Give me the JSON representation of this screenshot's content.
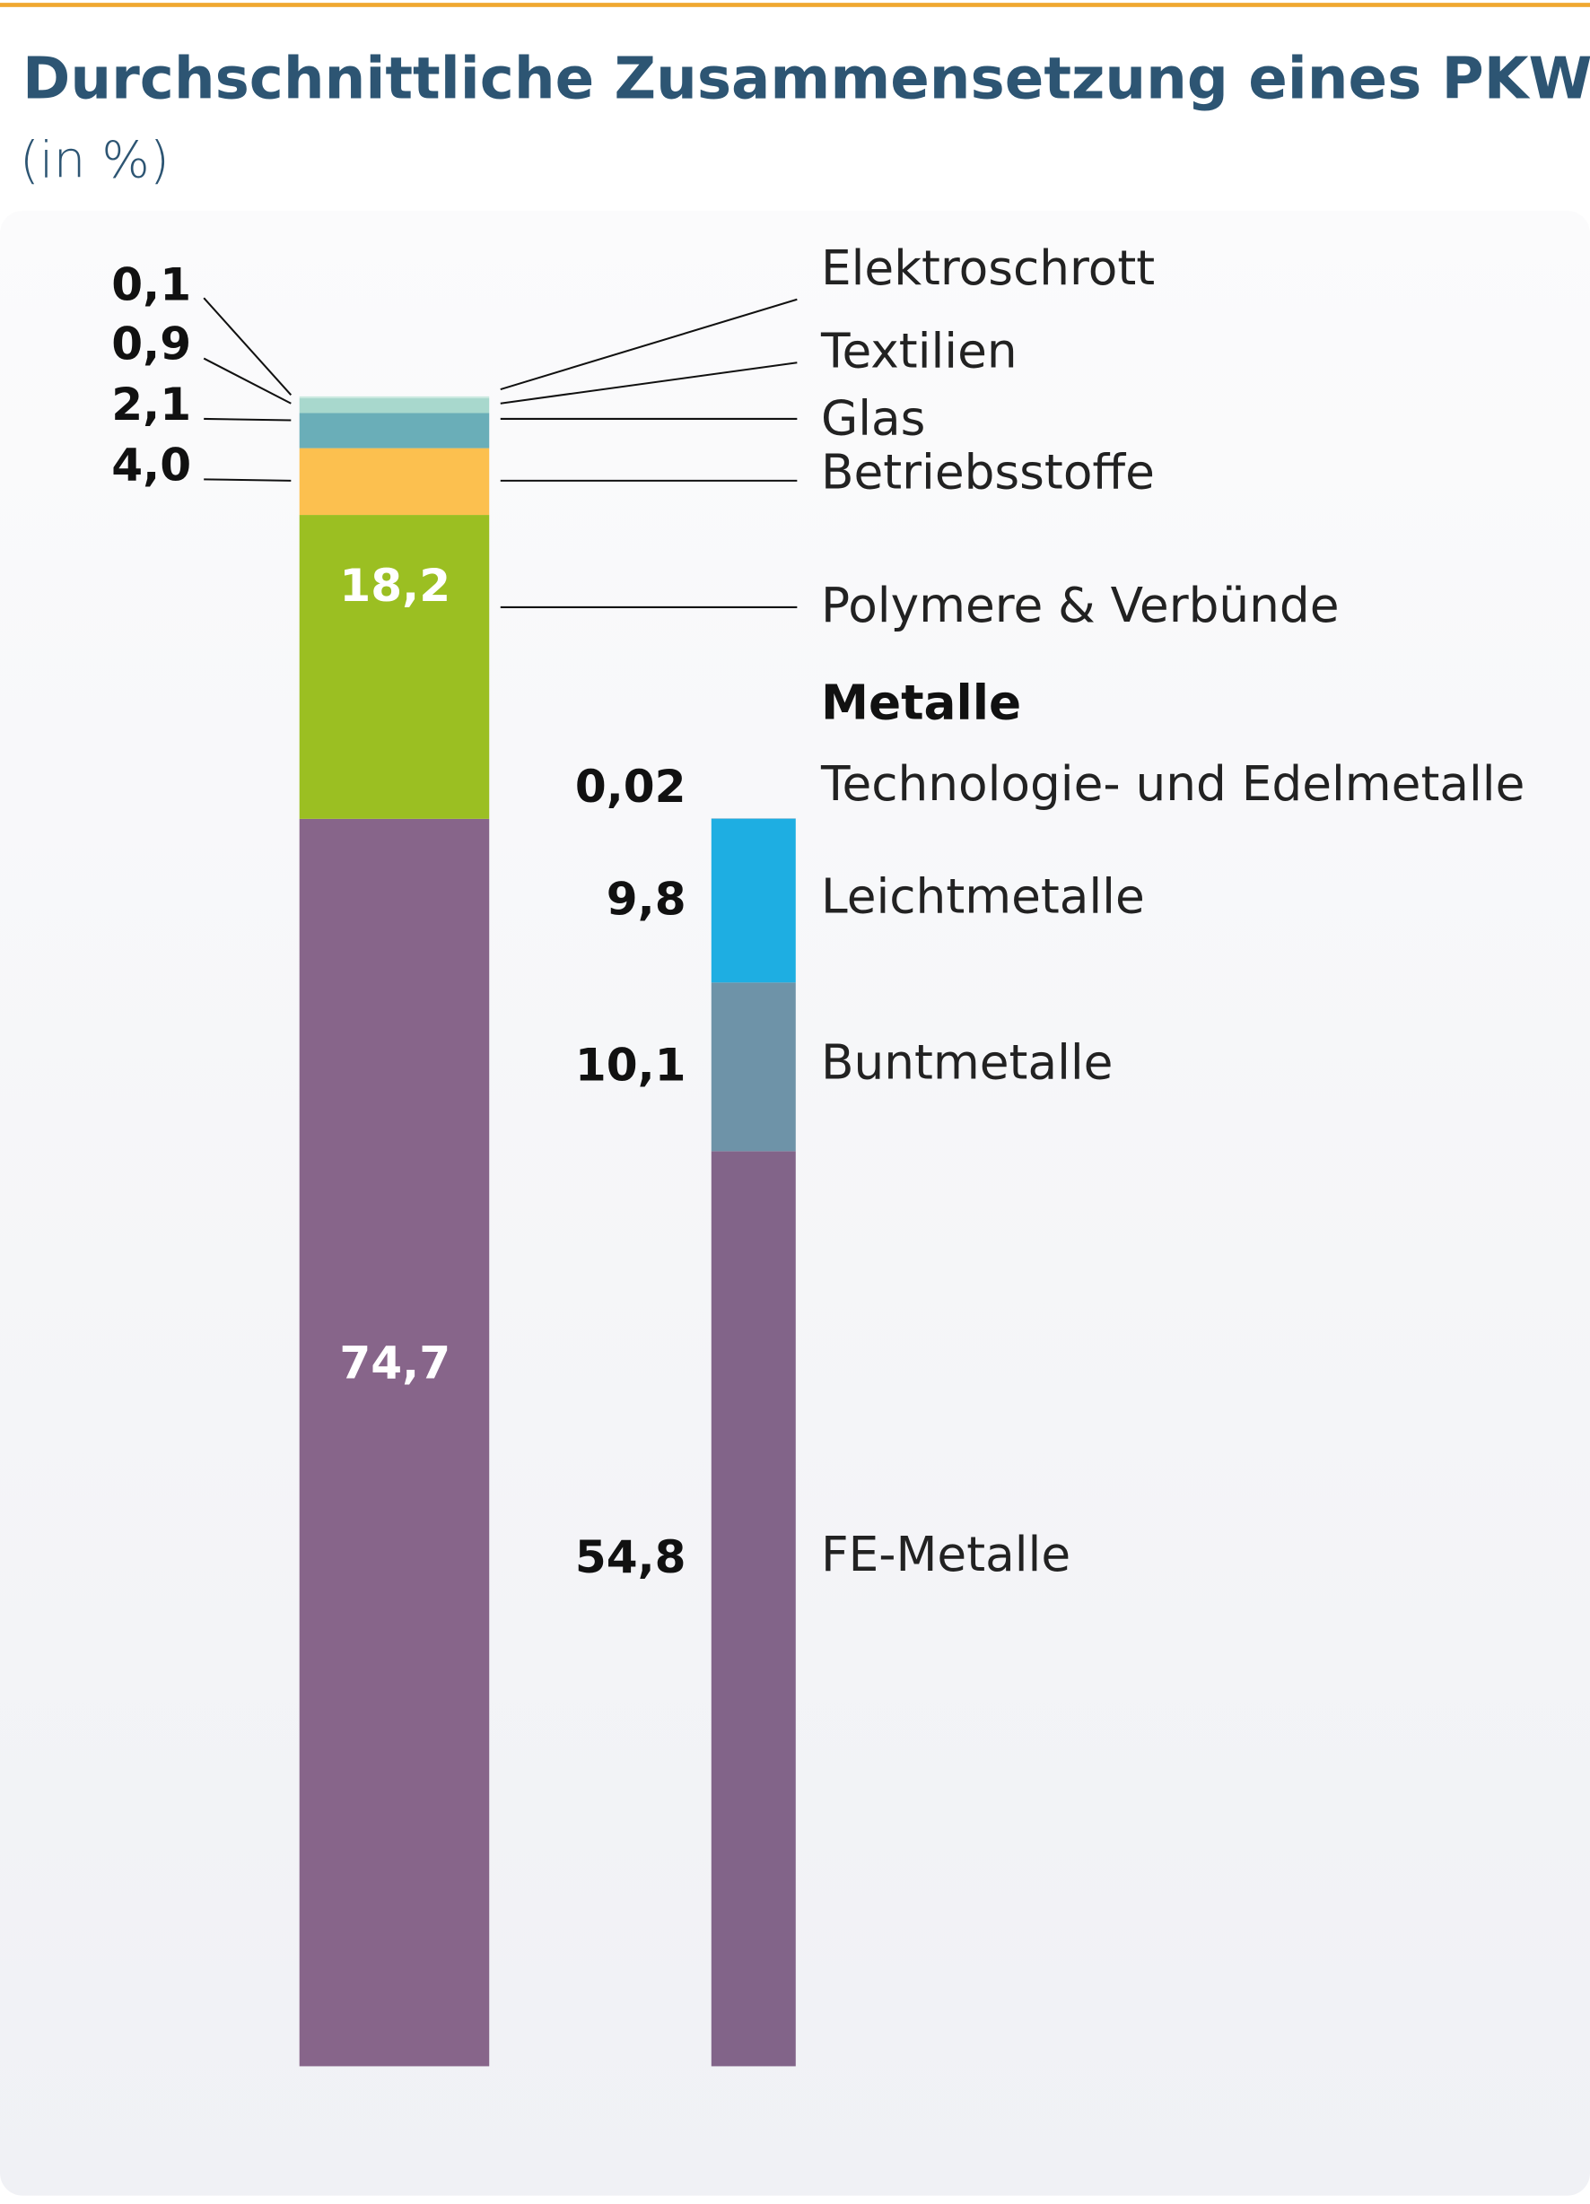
{
  "chart_data": {
    "type": "stacked-column",
    "title": "Durchschnittliche Zusammensetzung eines PKW",
    "subtitle": "(in %)",
    "ylim": [
      0,
      100
    ],
    "bars": [
      {
        "segments": [
          {
            "name": "Metalle",
            "value": 74.7,
            "value_label": "74,7",
            "color": "#87658a"
          },
          {
            "name": "Polymere & Verbünde",
            "value": 18.2,
            "value_label": "18,2",
            "color": "#9bbf22"
          },
          {
            "name": "Betriebsstoffe",
            "value": 4.0,
            "value_label": "4,0",
            "color": "#fcc04f"
          },
          {
            "name": "Glas",
            "value": 2.1,
            "value_label": "2,1",
            "color": "#6aaeb8"
          },
          {
            "name": "Textilien",
            "value": 0.9,
            "value_label": "0,9",
            "color": "#a8d8cd"
          },
          {
            "name": "Elektroschrott",
            "value": 0.1,
            "value_label": "0,1",
            "color": "#c9e8df"
          }
        ]
      },
      {
        "segments": [
          {
            "name": "FE-Metalle",
            "value": 54.8,
            "value_label": "54,8",
            "color": "#826489"
          },
          {
            "name": "Buntmetalle",
            "value": 10.1,
            "value_label": "10,1",
            "color": "#6e93a8"
          },
          {
            "name": "Leichtmetalle",
            "value": 9.8,
            "value_label": "9,8",
            "color": "#1eaee2"
          },
          {
            "name": "Technologie- und Edelmetalle",
            "value": 0.02,
            "value_label": "0,02",
            "color": "#1580b0"
          }
        ]
      }
    ]
  }
}
